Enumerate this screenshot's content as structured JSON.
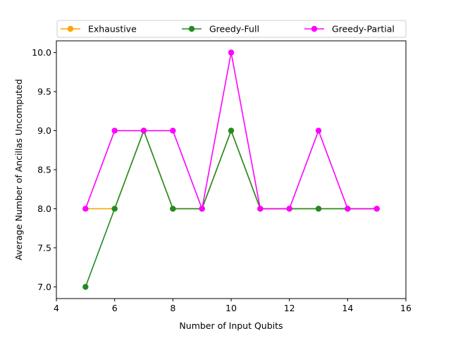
{
  "chart_data": {
    "type": "line",
    "xlabel": "Number of Input Qubits",
    "ylabel": "Average Number of Ancillas Uncomputed",
    "xlim": [
      4,
      16
    ],
    "ylim": [
      6.85,
      10.15
    ],
    "xticks": [
      4,
      6,
      8,
      10,
      12,
      14,
      16
    ],
    "yticks": [
      7.0,
      7.5,
      8.0,
      8.5,
      9.0,
      9.5,
      10.0
    ],
    "xtick_labels": [
      "4",
      "6",
      "8",
      "10",
      "12",
      "14",
      "16"
    ],
    "ytick_labels": [
      "7.0",
      "7.5",
      "8.0",
      "8.5",
      "9.0",
      "9.5",
      "10.0"
    ],
    "grid": false,
    "legend_position": "top, above plot",
    "x": [
      5,
      6,
      7,
      8,
      9,
      10,
      11,
      12,
      13,
      14,
      15
    ],
    "series": [
      {
        "name": "Exhaustive",
        "color": "#ffa500",
        "marker": "circle",
        "values": [
          8,
          8,
          9,
          8,
          8,
          9,
          8,
          8,
          8,
          8,
          8
        ]
      },
      {
        "name": "Greedy-Full",
        "color": "#228b22",
        "marker": "circle",
        "values": [
          7,
          8,
          9,
          8,
          8,
          9,
          8,
          8,
          8,
          8,
          8
        ]
      },
      {
        "name": "Greedy-Partial",
        "color": "#ff00ff",
        "marker": "circle",
        "values": [
          8,
          9,
          9,
          9,
          8,
          10,
          8,
          8,
          9,
          8,
          8
        ]
      }
    ]
  }
}
